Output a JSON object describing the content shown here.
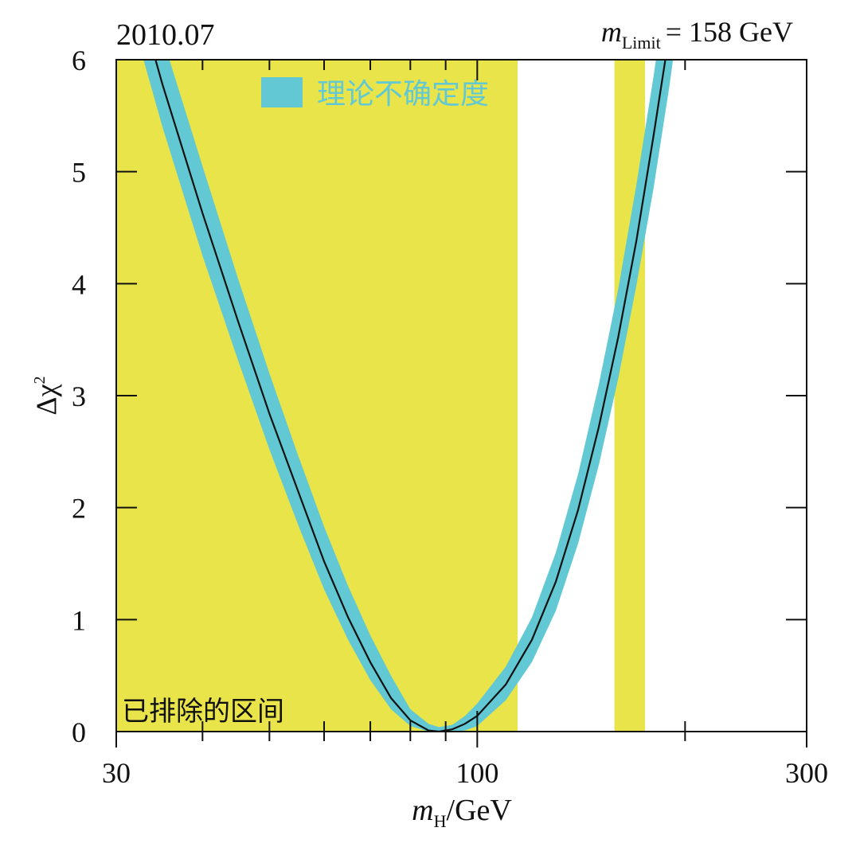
{
  "chart_data": {
    "type": "line",
    "x_scale": "log",
    "xlim": [
      30,
      300
    ],
    "ylim": [
      0,
      6
    ],
    "x_major_ticks": [
      30,
      100,
      300
    ],
    "x_minor_ticks": [
      40,
      50,
      60,
      70,
      80,
      90,
      200
    ],
    "y_ticks": [
      0,
      1,
      2,
      3,
      4,
      5,
      6
    ],
    "xlabel_main": "m",
    "xlabel_sub": "H",
    "xlabel_unit": "/GeV",
    "ylabel_main": "Δχ",
    "ylabel_sup": "2",
    "top_left_text": "2010.07",
    "limit_label_main": "m",
    "limit_label_sub": "Limit",
    "limit_label_value": "= 158 GeV",
    "legend_label": "理论不确定度",
    "excluded_label": "已排除的区间",
    "grid": false,
    "legend_position": "top-left",
    "colors": {
      "excluded": "#e8e44a",
      "band": "#62c8d3",
      "line": "#111111"
    },
    "excluded_regions": [
      [
        30,
        114.4
      ],
      [
        158,
        175
      ]
    ],
    "series": [
      {
        "x": [
          32,
          35,
          40,
          45,
          50,
          55,
          60,
          65,
          70,
          75,
          80,
          85,
          88,
          92,
          96,
          100,
          110,
          120,
          130,
          140,
          150,
          160,
          170,
          180,
          190,
          200
        ],
        "y": [
          6.63,
          5.78,
          4.63,
          3.67,
          2.84,
          2.15,
          1.52,
          1.02,
          0.62,
          0.3,
          0.1,
          0.01,
          0.0,
          0.02,
          0.07,
          0.14,
          0.42,
          0.82,
          1.34,
          1.98,
          2.72,
          3.52,
          4.38,
          5.32,
          6.25,
          7.3
        ]
      }
    ],
    "band": {
      "x": [
        32,
        35,
        40,
        45,
        50,
        55,
        60,
        65,
        70,
        75,
        80,
        85,
        88,
        92,
        96,
        100,
        110,
        120,
        130,
        140,
        150,
        160,
        170,
        180,
        190,
        200
      ],
      "low": [
        6.25,
        5.4,
        4.25,
        3.32,
        2.52,
        1.85,
        1.27,
        0.82,
        0.46,
        0.2,
        0.05,
        0.0,
        0.0,
        0.0,
        0.01,
        0.05,
        0.28,
        0.62,
        1.08,
        1.68,
        2.38,
        3.15,
        3.98,
        4.85,
        5.78,
        6.8
      ],
      "high": [
        7.1,
        6.2,
        5.05,
        4.05,
        3.2,
        2.47,
        1.83,
        1.3,
        0.86,
        0.5,
        0.2,
        0.07,
        0.04,
        0.06,
        0.14,
        0.25,
        0.58,
        1.02,
        1.6,
        2.3,
        3.1,
        3.95,
        4.88,
        5.85,
        6.85,
        7.9
      ]
    }
  }
}
